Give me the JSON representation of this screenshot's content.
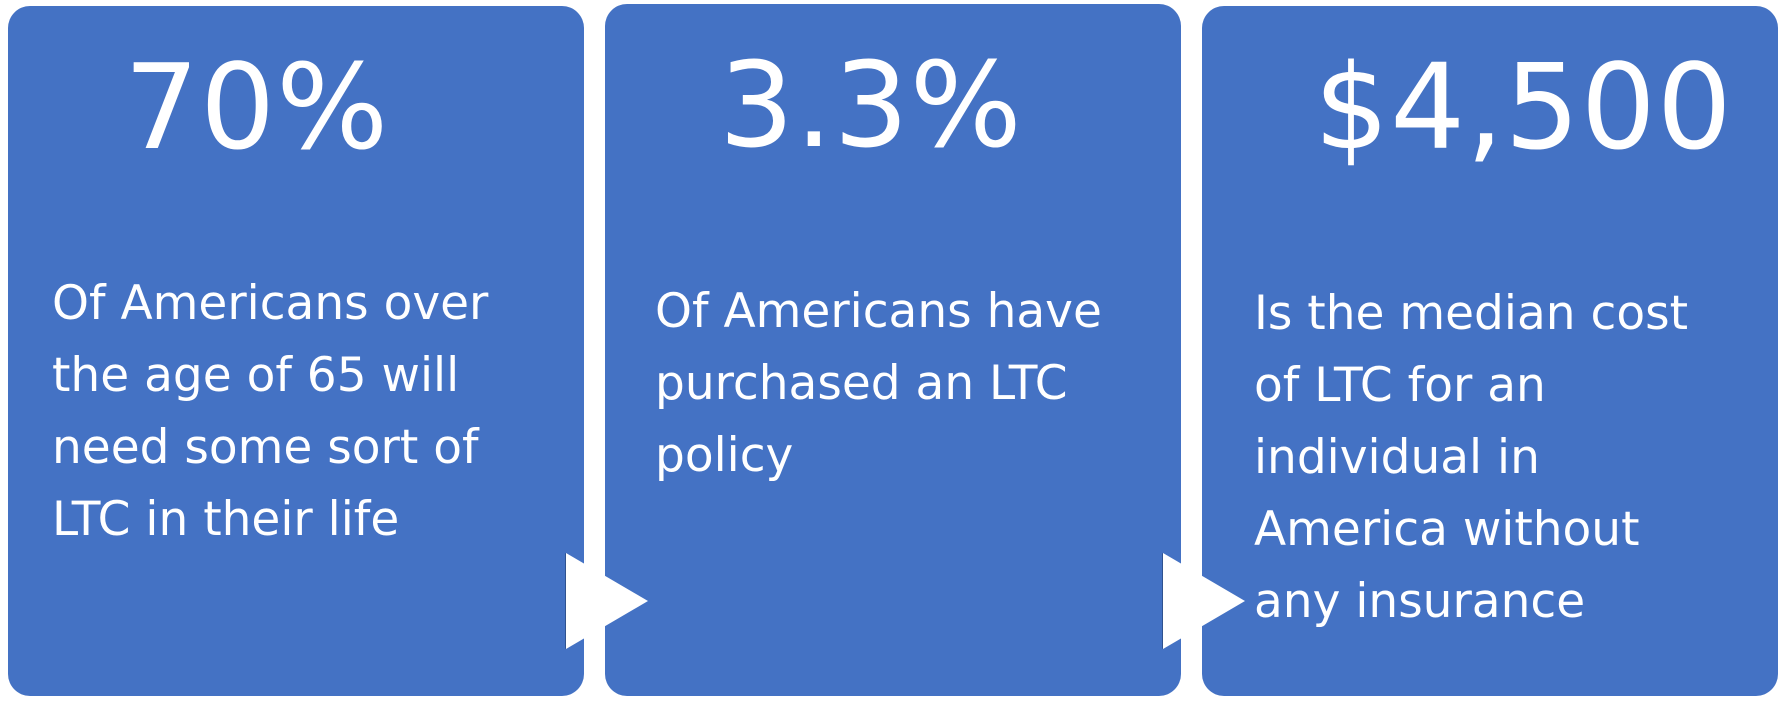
{
  "colors": {
    "card_background": "#4472c4",
    "text": "#ffffff",
    "arrow": "#ffffff"
  },
  "cards": [
    {
      "stat": "70%",
      "description": "Of Americans over\nthe age of 65 will\nneed some sort of\nLTC in their life"
    },
    {
      "stat": "3.3%",
      "description": "Of Americans have\npurchased an LTC\npolicy"
    },
    {
      "stat": "$4,500",
      "description": "Is the median cost\nof LTC for an\nindividual in\nAmerica without\nany insurance"
    }
  ],
  "connectors": [
    {
      "icon": "right-triangle-arrow-icon"
    },
    {
      "icon": "right-triangle-arrow-icon"
    }
  ]
}
